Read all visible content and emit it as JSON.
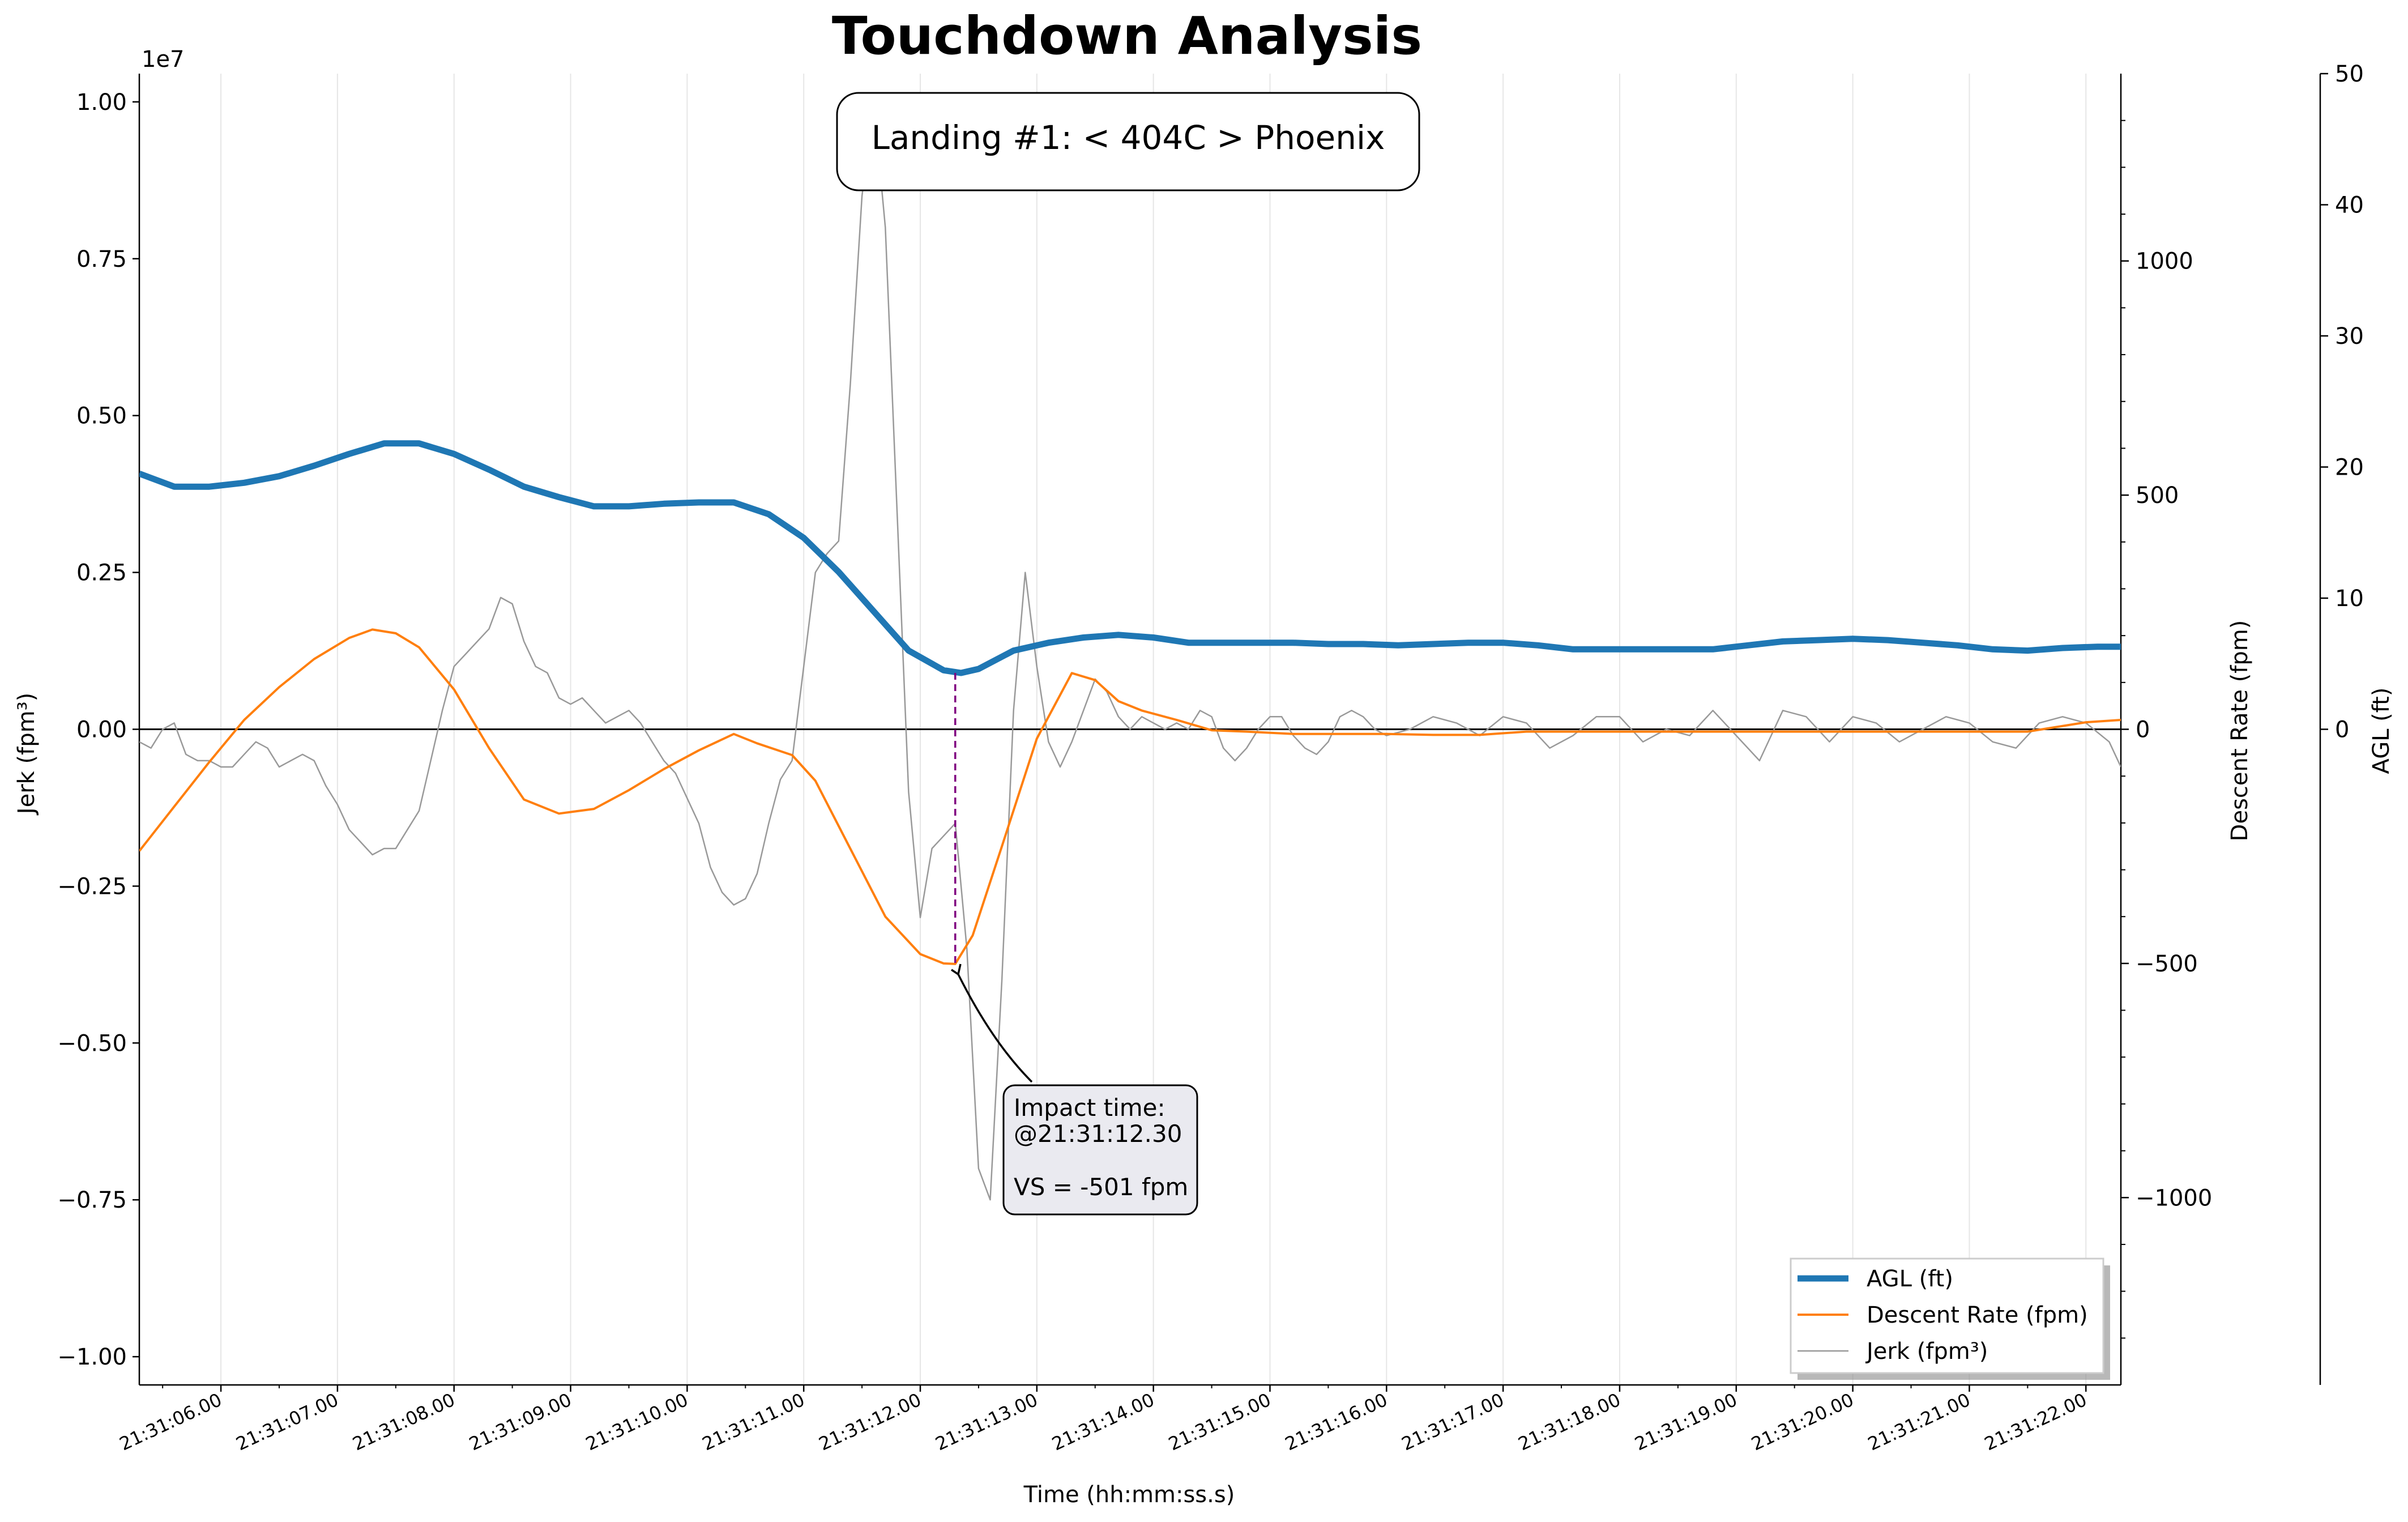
{
  "chart_data": {
    "type": "line",
    "title": "Touchdown Analysis",
    "subtitle": "Landing #1: < 404C > Phoenix",
    "xlabel": "Time (hh:mm:ss.s)",
    "ylabel_left": "Jerk (fpm³)",
    "ylabel_right": "Descent Rate (fpm)",
    "ylabel_far_right": "AGL (ft)",
    "jerk_axis_multiplier": "1e7",
    "x_ticks": [
      "21:31:06.00",
      "21:31:07.00",
      "21:31:08.00",
      "21:31:09.00",
      "21:31:10.00",
      "21:31:11.00",
      "21:31:12.00",
      "21:31:13.00",
      "21:31:14.00",
      "21:31:15.00",
      "21:31:16.00",
      "21:31:17.00",
      "21:31:18.00",
      "21:31:19.00",
      "21:31:20.00",
      "21:31:21.00",
      "21:31:22.00"
    ],
    "xlim_seconds": [
      5.3,
      22.3
    ],
    "jerk_ticks": [
      -1.0,
      -0.75,
      -0.5,
      -0.25,
      0.0,
      0.25,
      0.5,
      0.75,
      1.0
    ],
    "jerk_tick_labels": [
      "−1.00",
      "−0.75",
      "−0.50",
      "−0.25",
      "0.00",
      "0.25",
      "0.50",
      "0.75",
      "1.00"
    ],
    "jerk_ylim": [
      -1.045,
      1.045
    ],
    "descent_ticks": [
      -1000,
      -500,
      0,
      500,
      1000
    ],
    "descent_tick_labels": [
      "−1000",
      "−500",
      "0",
      "500",
      "1000"
    ],
    "descent_ylim": [
      -1400,
      1400
    ],
    "agl_ticks": [
      0,
      10,
      20,
      30,
      40,
      50
    ],
    "agl_ylim": [
      -50,
      50
    ],
    "impact_time_s": 12.3,
    "impact_vs": -501,
    "impact_annotation": [
      "Impact time:",
      "@21:31:12.30",
      "",
      "VS = -501 fpm"
    ],
    "legend_location": "lower right",
    "grid": "vertical only",
    "series": [
      {
        "name": "AGL (ft)",
        "color": "#1f77b4",
        "x": [
          5.3,
          5.6,
          5.9,
          6.2,
          6.5,
          6.8,
          7.1,
          7.4,
          7.7,
          8.0,
          8.3,
          8.6,
          8.9,
          9.2,
          9.5,
          9.8,
          10.1,
          10.4,
          10.7,
          11.0,
          11.3,
          11.6,
          11.9,
          12.2,
          12.35,
          12.5,
          12.8,
          13.1,
          13.4,
          13.7,
          14.0,
          14.3,
          14.6,
          14.9,
          15.2,
          15.5,
          15.8,
          16.1,
          16.4,
          16.7,
          17.0,
          17.3,
          17.6,
          17.9,
          18.2,
          18.5,
          18.8,
          19.1,
          19.4,
          19.7,
          20.0,
          20.3,
          20.6,
          20.9,
          21.2,
          21.5,
          21.8,
          22.1,
          22.3
        ],
        "values": [
          19.5,
          18.5,
          18.5,
          18.8,
          19.3,
          20.1,
          21.0,
          21.8,
          21.8,
          21.0,
          19.8,
          18.5,
          17.7,
          17.0,
          17.0,
          17.2,
          17.3,
          17.3,
          16.4,
          14.6,
          12.0,
          9.0,
          6.0,
          4.5,
          4.3,
          4.6,
          6.0,
          6.6,
          7.0,
          7.2,
          7.0,
          6.6,
          6.6,
          6.6,
          6.6,
          6.5,
          6.5,
          6.4,
          6.5,
          6.6,
          6.6,
          6.4,
          6.1,
          6.1,
          6.1,
          6.1,
          6.1,
          6.4,
          6.7,
          6.8,
          6.9,
          6.8,
          6.6,
          6.4,
          6.1,
          6.0,
          6.2,
          6.3,
          6.3
        ]
      },
      {
        "name": "Descent Rate (fpm)",
        "color": "#ff7f0e",
        "x": [
          5.3,
          5.6,
          5.9,
          6.2,
          6.5,
          6.8,
          7.1,
          7.3,
          7.5,
          7.7,
          8.0,
          8.3,
          8.6,
          8.9,
          9.2,
          9.5,
          9.8,
          10.1,
          10.4,
          10.6,
          10.9,
          11.1,
          11.4,
          11.7,
          12.0,
          12.2,
          12.3,
          12.45,
          12.7,
          13.0,
          13.3,
          13.5,
          13.7,
          13.9,
          14.2,
          14.5,
          14.8,
          15.2,
          15.6,
          16.0,
          16.4,
          16.8,
          17.2,
          17.6,
          18.0,
          18.5,
          19.0,
          19.5,
          20.0,
          20.5,
          21.0,
          21.5,
          22.0,
          22.3
        ],
        "values": [
          -260,
          -165,
          -70,
          20,
          90,
          150,
          195,
          213,
          205,
          175,
          85,
          -40,
          -150,
          -180,
          -170,
          -130,
          -85,
          -45,
          -10,
          -30,
          -55,
          -110,
          -255,
          -400,
          -480,
          -500,
          -501,
          -440,
          -250,
          -20,
          120,
          105,
          60,
          40,
          20,
          -2,
          -5,
          -10,
          -10,
          -10,
          -12,
          -12,
          -5,
          -5,
          -5,
          -5,
          -5,
          -5,
          -5,
          -5,
          -5,
          -5,
          15,
          20
        ]
      },
      {
        "name": "Jerk (fpm³)",
        "color": "#999999",
        "x": [
          5.3,
          5.4,
          5.5,
          5.6,
          5.7,
          5.8,
          5.9,
          6.0,
          6.1,
          6.2,
          6.3,
          6.4,
          6.5,
          6.6,
          6.7,
          6.8,
          6.9,
          7.0,
          7.1,
          7.2,
          7.3,
          7.4,
          7.5,
          7.6,
          7.7,
          7.8,
          7.9,
          8.0,
          8.1,
          8.2,
          8.3,
          8.4,
          8.5,
          8.6,
          8.7,
          8.8,
          8.9,
          9.0,
          9.1,
          9.2,
          9.3,
          9.4,
          9.5,
          9.6,
          9.7,
          9.8,
          9.9,
          10.0,
          10.1,
          10.2,
          10.3,
          10.4,
          10.5,
          10.6,
          10.7,
          10.8,
          10.9,
          11.0,
          11.1,
          11.2,
          11.3,
          11.4,
          11.5,
          11.6,
          11.7,
          11.8,
          11.9,
          12.0,
          12.1,
          12.2,
          12.3,
          12.4,
          12.5,
          12.6,
          12.7,
          12.8,
          12.9,
          13.0,
          13.1,
          13.2,
          13.3,
          13.4,
          13.5,
          13.6,
          13.7,
          13.8,
          13.9,
          14.0,
          14.1,
          14.2,
          14.3,
          14.4,
          14.5,
          14.6,
          14.7,
          14.8,
          14.9,
          15.0,
          15.1,
          15.2,
          15.3,
          15.4,
          15.5,
          15.6,
          15.7,
          15.8,
          15.9,
          16.0,
          16.2,
          16.4,
          16.6,
          16.8,
          17.0,
          17.2,
          17.4,
          17.6,
          17.8,
          18.0,
          18.2,
          18.4,
          18.6,
          18.8,
          19.0,
          19.2,
          19.4,
          19.6,
          19.8,
          20.0,
          20.2,
          20.4,
          20.6,
          20.8,
          21.0,
          21.2,
          21.4,
          21.6,
          21.8,
          22.0,
          22.2,
          22.3
        ],
        "values": [
          -0.02,
          -0.03,
          0.0,
          0.01,
          -0.04,
          -0.05,
          -0.05,
          -0.06,
          -0.06,
          -0.04,
          -0.02,
          -0.03,
          -0.06,
          -0.05,
          -0.04,
          -0.05,
          -0.09,
          -0.12,
          -0.16,
          -0.18,
          -0.2,
          -0.19,
          -0.19,
          -0.16,
          -0.13,
          -0.05,
          0.03,
          0.1,
          0.12,
          0.14,
          0.16,
          0.21,
          0.2,
          0.14,
          0.1,
          0.09,
          0.05,
          0.04,
          0.05,
          0.03,
          0.01,
          0.02,
          0.03,
          0.01,
          -0.02,
          -0.05,
          -0.07,
          -0.11,
          -0.15,
          -0.22,
          -0.26,
          -0.28,
          -0.27,
          -0.23,
          -0.15,
          -0.08,
          -0.05,
          0.1,
          0.25,
          0.28,
          0.3,
          0.55,
          0.85,
          1.0,
          0.8,
          0.35,
          -0.1,
          -0.3,
          -0.19,
          -0.17,
          -0.15,
          -0.35,
          -0.7,
          -0.75,
          -0.4,
          0.03,
          0.25,
          0.1,
          -0.02,
          -0.06,
          -0.02,
          0.03,
          0.08,
          0.06,
          0.02,
          0.0,
          0.02,
          0.01,
          0.0,
          0.01,
          0.0,
          0.03,
          0.02,
          -0.03,
          -0.05,
          -0.03,
          0.0,
          0.02,
          0.02,
          -0.01,
          -0.03,
          -0.04,
          -0.02,
          0.02,
          0.03,
          0.02,
          0.0,
          -0.01,
          0.0,
          0.02,
          0.01,
          -0.01,
          0.02,
          0.01,
          -0.03,
          -0.01,
          0.02,
          0.02,
          -0.02,
          0.0,
          -0.01,
          0.03,
          -0.01,
          -0.05,
          0.03,
          0.02,
          -0.02,
          0.02,
          0.01,
          -0.02,
          0.0,
          0.02,
          0.01,
          -0.02,
          -0.03,
          0.01,
          0.02,
          0.01,
          -0.02,
          -0.06
        ]
      }
    ]
  }
}
